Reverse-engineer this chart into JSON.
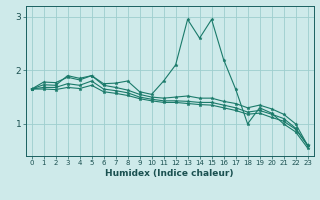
{
  "xlabel": "Humidex (Indice chaleur)",
  "background_color": "#ceeaea",
  "grid_color": "#9ecece",
  "line_color": "#1a7a6a",
  "xlim": [
    -0.5,
    23.5
  ],
  "ylim": [
    0.4,
    3.2
  ],
  "yticks": [
    1,
    2,
    3
  ],
  "xticks": [
    0,
    1,
    2,
    3,
    4,
    5,
    6,
    7,
    8,
    9,
    10,
    11,
    12,
    13,
    14,
    15,
    16,
    17,
    18,
    19,
    20,
    21,
    22,
    23
  ],
  "lines": [
    {
      "x": [
        0,
        1,
        2,
        3,
        4,
        5,
        6,
        7,
        8,
        9,
        10,
        11,
        12,
        13,
        14,
        15,
        16,
        17,
        18,
        19,
        20,
        21,
        22,
        23
      ],
      "y": [
        1.65,
        1.78,
        1.77,
        1.87,
        1.82,
        1.9,
        1.75,
        1.76,
        1.8,
        1.6,
        1.55,
        1.8,
        2.1,
        2.95,
        2.6,
        2.95,
        2.2,
        1.65,
        1.0,
        1.3,
        1.2,
        1.0,
        0.85,
        0.55
      ]
    },
    {
      "x": [
        0,
        1,
        2,
        3,
        4,
        5,
        6,
        7,
        8,
        9,
        10,
        11,
        12,
        13,
        14,
        15,
        16,
        17,
        18,
        19,
        20,
        21,
        22,
        23
      ],
      "y": [
        1.65,
        1.73,
        1.72,
        1.9,
        1.85,
        1.9,
        1.72,
        1.68,
        1.63,
        1.55,
        1.5,
        1.48,
        1.5,
        1.52,
        1.48,
        1.48,
        1.42,
        1.38,
        1.3,
        1.35,
        1.28,
        1.18,
        1.0,
        0.6
      ]
    },
    {
      "x": [
        0,
        1,
        2,
        3,
        4,
        5,
        6,
        7,
        8,
        9,
        10,
        11,
        12,
        13,
        14,
        15,
        16,
        17,
        18,
        19,
        20,
        21,
        22,
        23
      ],
      "y": [
        1.65,
        1.68,
        1.68,
        1.75,
        1.72,
        1.8,
        1.65,
        1.62,
        1.58,
        1.5,
        1.46,
        1.43,
        1.43,
        1.42,
        1.4,
        1.4,
        1.35,
        1.3,
        1.22,
        1.25,
        1.18,
        1.1,
        0.92,
        0.6
      ]
    },
    {
      "x": [
        0,
        1,
        2,
        3,
        4,
        5,
        6,
        7,
        8,
        9,
        10,
        11,
        12,
        13,
        14,
        15,
        16,
        17,
        18,
        19,
        20,
        21,
        22,
        23
      ],
      "y": [
        1.65,
        1.65,
        1.64,
        1.68,
        1.66,
        1.72,
        1.6,
        1.57,
        1.53,
        1.47,
        1.43,
        1.4,
        1.4,
        1.38,
        1.36,
        1.35,
        1.3,
        1.25,
        1.18,
        1.2,
        1.12,
        1.05,
        0.9,
        0.6
      ]
    }
  ]
}
